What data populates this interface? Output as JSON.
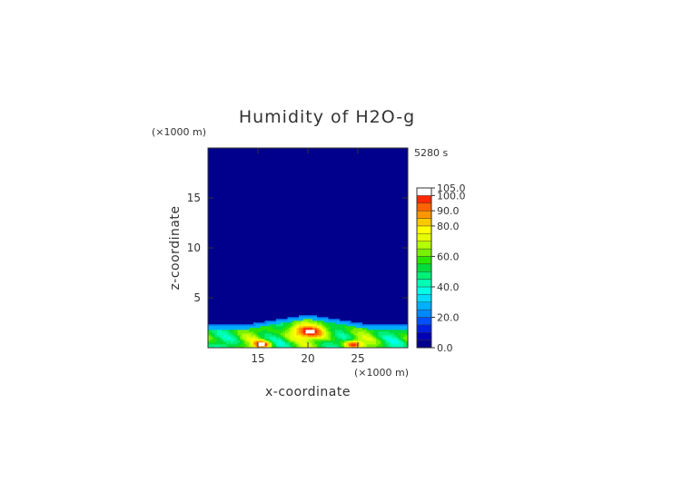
{
  "chart_data": {
    "type": "heatmap",
    "title": "Humidity of H2O-g",
    "time_label": "5280 s",
    "xlabel": "x-coordinate",
    "ylabel": "z-coordinate",
    "x_unit": "(×1000 m)",
    "y_unit": "(×1000 m)",
    "xlim": [
      10,
      30
    ],
    "ylim": [
      0,
      20
    ],
    "x_ticks": [
      15,
      20,
      25
    ],
    "y_ticks": [
      5,
      10,
      15
    ],
    "x_tick_labels": [
      "15",
      "20",
      "25"
    ],
    "y_tick_labels": [
      "5",
      "10",
      "15"
    ],
    "colorbar": {
      "range": [
        0,
        105
      ],
      "tick_values": [
        0,
        20,
        40,
        60,
        80,
        90,
        100,
        105
      ],
      "tick_labels": [
        "0.0",
        "20.0",
        "40.0",
        "60.0",
        "80.0",
        "90.0",
        "100.0",
        "105.0"
      ],
      "levels": [
        {
          "lo": 0,
          "hi": 5,
          "color": "#00008c"
        },
        {
          "lo": 5,
          "hi": 10,
          "color": "#0000b4"
        },
        {
          "lo": 10,
          "hi": 15,
          "color": "#0020e0"
        },
        {
          "lo": 15,
          "hi": 20,
          "color": "#0050ff"
        },
        {
          "lo": 20,
          "hi": 25,
          "color": "#0088ff"
        },
        {
          "lo": 25,
          "hi": 30,
          "color": "#00b0ff"
        },
        {
          "lo": 30,
          "hi": 35,
          "color": "#00dcff"
        },
        {
          "lo": 35,
          "hi": 40,
          "color": "#00ffe6"
        },
        {
          "lo": 40,
          "hi": 45,
          "color": "#00ffb4"
        },
        {
          "lo": 45,
          "hi": 50,
          "color": "#00f078"
        },
        {
          "lo": 50,
          "hi": 55,
          "color": "#00dc3c"
        },
        {
          "lo": 55,
          "hi": 60,
          "color": "#28e600"
        },
        {
          "lo": 60,
          "hi": 65,
          "color": "#78f000"
        },
        {
          "lo": 65,
          "hi": 70,
          "color": "#b4ff00"
        },
        {
          "lo": 70,
          "hi": 75,
          "color": "#e6ff00"
        },
        {
          "lo": 75,
          "hi": 80,
          "color": "#ffff00"
        },
        {
          "lo": 80,
          "hi": 85,
          "color": "#ffc800"
        },
        {
          "lo": 85,
          "hi": 90,
          "color": "#ff9600"
        },
        {
          "lo": 90,
          "hi": 95,
          "color": "#ff6400"
        },
        {
          "lo": 95,
          "hi": 100,
          "color": "#ff2800"
        },
        {
          "lo": 100,
          "hi": 105,
          "color": "#ffffff"
        }
      ]
    },
    "field": {
      "background_value": 2,
      "moist_layer_top_z": 2.0,
      "moist_layer_value": 55,
      "peak_center_x": 20,
      "peak_top_z": 3.0,
      "peak_value": 95,
      "hotspots_x": [
        15.5,
        24.5
      ],
      "hotspot_value": 98
    }
  }
}
